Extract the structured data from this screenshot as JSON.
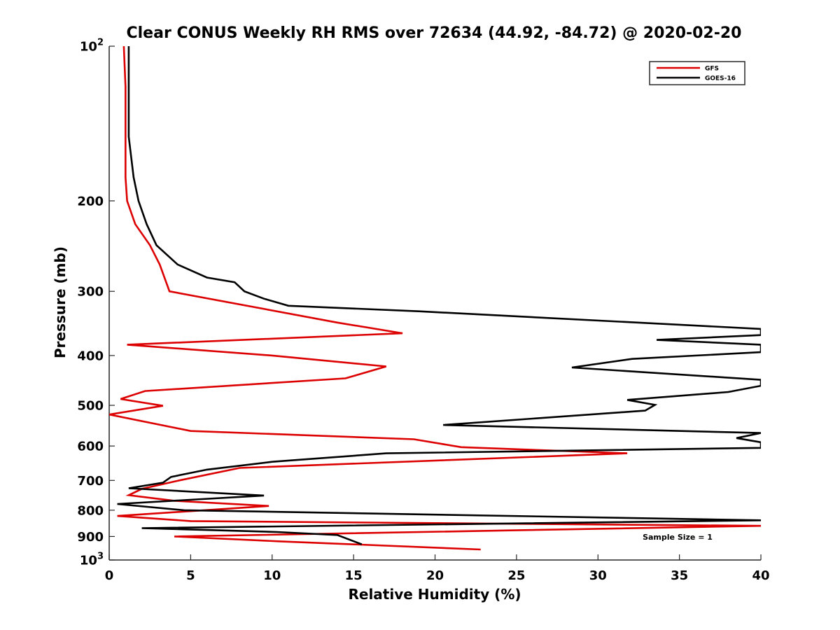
{
  "chart_data": {
    "type": "line",
    "title": "Clear CONUS Weekly RH RMS over 72634 (44.92, -84.72) @ 2020-02-20",
    "xlabel": "Relative Humidity (%)",
    "ylabel": "Pressure (mb)",
    "xlim": [
      0,
      40
    ],
    "ylim": [
      100,
      1000
    ],
    "yscale": "log",
    "y_reversed": true,
    "x_ticks": [
      0,
      5,
      10,
      15,
      20,
      25,
      30,
      35,
      40
    ],
    "y_ticks": [
      {
        "value": 100,
        "label": "10",
        "sup": "2"
      },
      {
        "value": 200,
        "label": "200"
      },
      {
        "value": 300,
        "label": "300"
      },
      {
        "value": 400,
        "label": "400"
      },
      {
        "value": 500,
        "label": "500"
      },
      {
        "value": 600,
        "label": "600"
      },
      {
        "value": 700,
        "label": "700"
      },
      {
        "value": 800,
        "label": "800"
      },
      {
        "value": 900,
        "label": "900"
      },
      {
        "value": 1000,
        "label": "10",
        "sup": "3"
      }
    ],
    "legend_position": "top-right",
    "annotation": "Sample Size = 1",
    "series": [
      {
        "name": "GFS",
        "color": "#dd0000",
        "x": [
          0.9,
          1.0,
          1.0,
          1.0,
          1.1,
          1.6,
          2.5,
          3.1,
          3.7,
          14.0,
          18.0,
          1.1,
          10.0,
          17.0,
          14.5,
          2.2,
          0.7,
          3.3,
          0.0,
          5.0,
          18.7,
          21.6,
          31.8,
          8.0,
          4.3,
          2.0,
          1.2,
          4.0,
          9.8,
          0.5,
          5.0,
          40.0,
          4.0,
          10.5,
          22.8
        ],
        "y": [
          100,
          120,
          150,
          180,
          200,
          222,
          244,
          266,
          300,
          345,
          362,
          381,
          400,
          420,
          443,
          469,
          486,
          501,
          521,
          561,
          582,
          603,
          620,
          662,
          700,
          727,
          748,
          767,
          785,
          821,
          840,
          858,
          900,
          920,
          954
        ]
      },
      {
        "name": "GOES-16",
        "color": "#000000",
        "x": [
          1.2,
          1.2,
          1.2,
          1.5,
          1.8,
          2.3,
          2.9,
          4.2,
          6.0,
          7.7,
          8.3,
          9.5,
          11.0,
          19.0,
          40.0,
          40.0,
          33.6,
          40.0,
          40.0,
          32.1,
          28.4,
          40.0,
          40.0,
          38.0,
          31.8,
          33.5,
          32.9,
          20.5,
          40.0,
          38.5,
          40.0,
          40.0,
          17.0,
          10.0,
          6.0,
          3.8,
          3.3,
          1.2,
          9.5,
          0.5,
          4.6,
          40.0,
          2.0,
          10.3,
          14.0,
          15.5
        ],
        "y": [
          100,
          120,
          150,
          180,
          200,
          222,
          244,
          266,
          282,
          288,
          300,
          310,
          320,
          328,
          355,
          365,
          373,
          381,
          394,
          406,
          422,
          446,
          458,
          471,
          488,
          499,
          512,
          546,
          566,
          579,
          590,
          605,
          620,
          644,
          667,
          689,
          707,
          725,
          749,
          778,
          800,
          837,
          867,
          882,
          894,
          932
        ]
      }
    ]
  }
}
